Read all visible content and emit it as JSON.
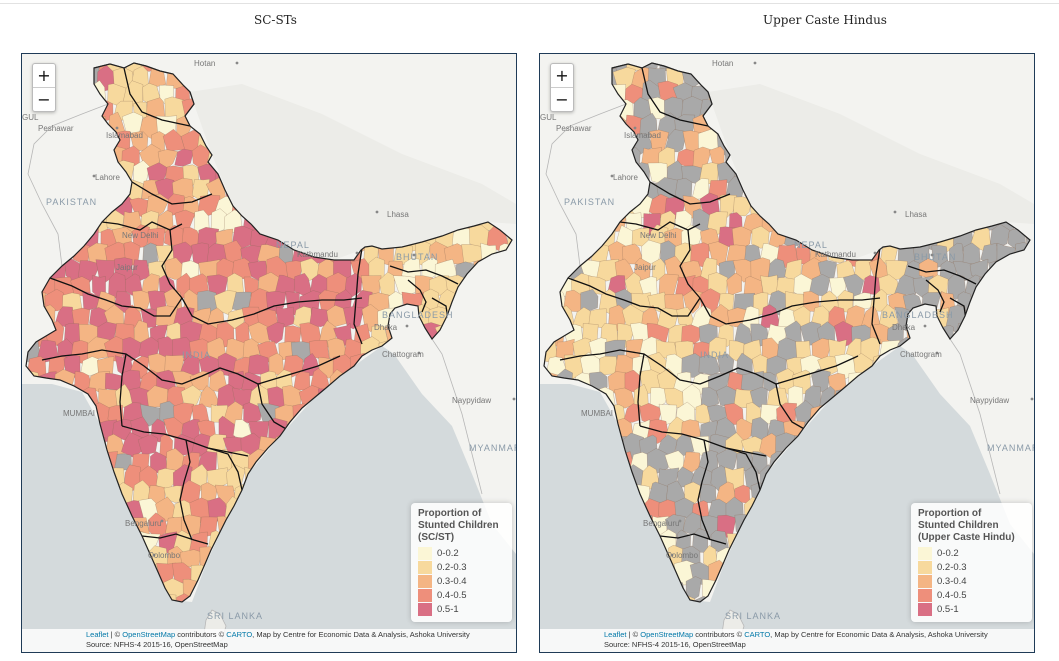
{
  "panels": [
    {
      "title": "SC-STs",
      "legend": {
        "title_lines": [
          "Proportion of",
          "Stunted Children",
          "(SC/ST)"
        ],
        "items": [
          {
            "label": "0-0.2",
            "color": "#fbf6d6"
          },
          {
            "label": "0.2-0.3",
            "color": "#f7d99d"
          },
          {
            "label": "0.3-0.4",
            "color": "#f4b584"
          },
          {
            "label": "0.4-0.5",
            "color": "#ee8f7b"
          },
          {
            "label": "0.5-1",
            "color": "#d96f84"
          }
        ]
      }
    },
    {
      "title": "Upper Caste Hindus",
      "legend": {
        "title_lines": [
          "Proportion of",
          "Stunted Children",
          "(Upper Caste Hindu)"
        ],
        "items": [
          {
            "label": "0-0.2",
            "color": "#fbf6d6"
          },
          {
            "label": "0.2-0.3",
            "color": "#f7d99d"
          },
          {
            "label": "0.3-0.4",
            "color": "#f4b584"
          },
          {
            "label": "0.4-0.5",
            "color": "#ee8f7b"
          },
          {
            "label": "0.5-1",
            "color": "#d96f84"
          }
        ]
      }
    }
  ],
  "zoom": {
    "in": "+",
    "out": "−"
  },
  "place_labels": {
    "hotan": "Hotan",
    "gul": "GUL",
    "peshawar": "Peshawar",
    "islamabad": "Islamabad",
    "lahore": "Lahore",
    "pakistan": "PAKISTAN",
    "lhasa": "Lhasa",
    "nepal": "NEPAL",
    "kathmandu": "Kathmandu",
    "bhutan": "BHUTAN",
    "bangladesh": "BANGLADESH",
    "dhaka": "Dhaka",
    "chattogram": "Chattogram",
    "mumbai": "MUMBAI",
    "naypyidaw": "Naypyidaw",
    "myanmar": "MYANMAR",
    "sri_lanka": "SRI LANKA",
    "bengaluru": "Bengaluru",
    "colombo": "Colombo",
    "new_delhi": "New Delhi",
    "jaipur": "Jaipur",
    "india": "INDIA"
  },
  "attribution": {
    "leaflet": "Leaflet",
    "sep1": " | © ",
    "osm": "OpenStreetMap",
    "contrib": " contributors © ",
    "carto": "CARTO",
    "rest": ", Map by Centre for Economic Data & Analysis, Ashoka University",
    "source": "Source: NFHS-4 2015-16, OpenStreetMap"
  },
  "colors": {
    "no_data": "#a9a9a9",
    "state_border": "#111111",
    "district_border": "#8a6a55",
    "water": "#d4dadc",
    "land": "#f3f3f0"
  }
}
